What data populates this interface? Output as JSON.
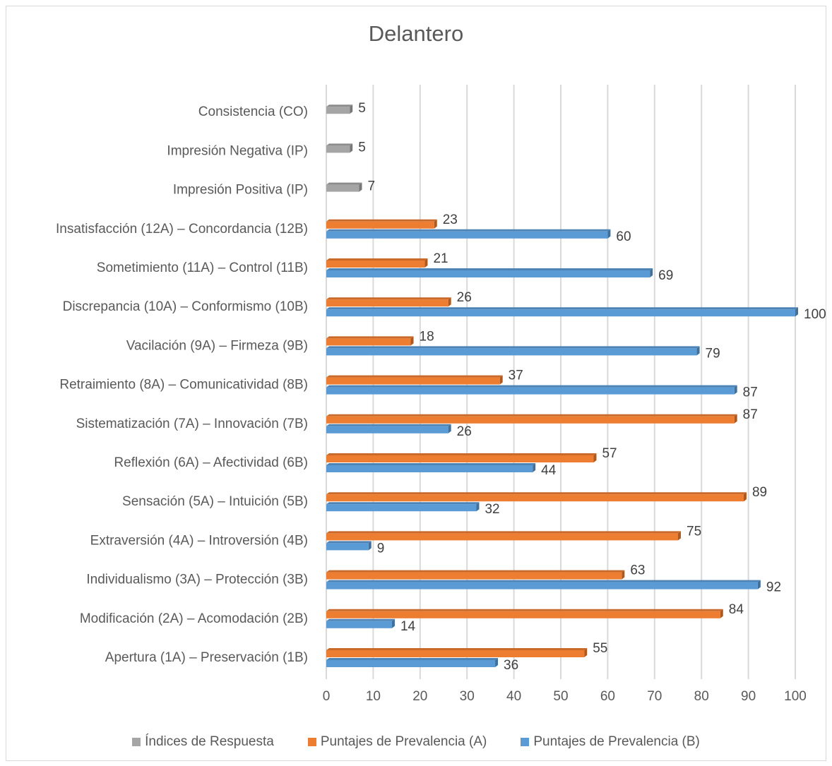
{
  "chart_data": {
    "type": "bar",
    "orientation": "horizontal",
    "title": "Delantero",
    "categories": [
      "Apertura (1A) – Preservación (1B)",
      "Modificación (2A) – Acomodación (2B)",
      "Individualismo (3A) – Protección (3B)",
      "Extraversión (4A) – Introversión (4B)",
      "Sensación (5A) – Intuición (5B)",
      "Reflexión (6A) – Afectividad (6B)",
      "Sistematización (7A) – Innovación (7B)",
      "Retraimiento (8A) – Comunicatividad (8B)",
      "Vacilación (9A) – Firmeza (9B)",
      "Discrepancia (10A) – Conformismo (10B)",
      "Sometimiento  (11A) – Control (11B)",
      "Insatisfacción (12A) – Concordancia (12B)",
      "Impresión Positiva (IP)",
      "Impresión Negativa (IP)",
      "Consistencia (CO)"
    ],
    "series": [
      {
        "name": "Índices de Respuesta",
        "color": "#a5a5a5",
        "values": [
          null,
          null,
          null,
          null,
          null,
          null,
          null,
          null,
          null,
          null,
          null,
          null,
          7,
          5,
          5
        ]
      },
      {
        "name": "Puntajes de Prevalencia (A)",
        "color": "#ed7d31",
        "values": [
          55,
          84,
          63,
          75,
          89,
          57,
          87,
          37,
          18,
          26,
          21,
          23,
          null,
          null,
          null
        ]
      },
      {
        "name": "Puntajes de Prevalencia (B)",
        "color": "#5b9bd5",
        "values": [
          36,
          14,
          92,
          9,
          32,
          44,
          26,
          87,
          79,
          100,
          69,
          60,
          null,
          null,
          null
        ]
      }
    ],
    "xlim": [
      0,
      100
    ],
    "x_ticks": [
      "0",
      "10",
      "20",
      "30",
      "40",
      "50",
      "60",
      "70",
      "80",
      "90",
      "100"
    ],
    "grid": true,
    "legend_position": "bottom"
  }
}
